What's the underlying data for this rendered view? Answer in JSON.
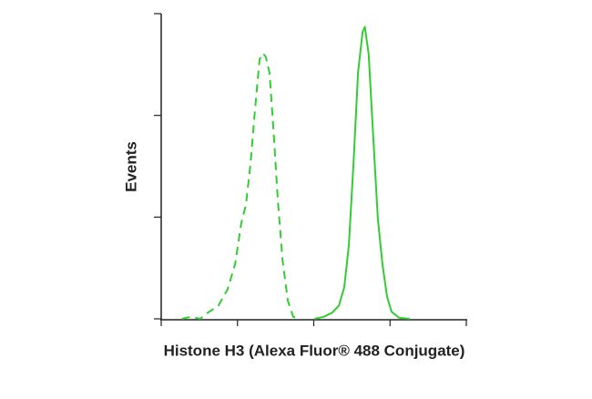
{
  "chart_data": {
    "type": "line",
    "x_label": "Histone H3 (Alexa Fluor® 488 Conjugate)",
    "y_label": "Events",
    "xlim": [
      0,
      4
    ],
    "ylim": [
      0,
      3
    ],
    "xticks": [
      0,
      1,
      2,
      3,
      4
    ],
    "yticks": [
      0,
      1,
      2,
      3
    ],
    "series": [
      {
        "color": "#33cc33",
        "dashed": true,
        "x": [
          0.27,
          0.39,
          0.51,
          0.61,
          0.75,
          0.87,
          0.97,
          1.05,
          1.11,
          1.17,
          1.23,
          1.29,
          1.33,
          1.37,
          1.42,
          1.47,
          1.53,
          1.59,
          1.66,
          1.73,
          1.82
        ],
        "values": [
          0,
          0.02,
          0,
          0.06,
          0.13,
          0.29,
          0.54,
          0.94,
          1.12,
          1.52,
          2.06,
          2.55,
          2.61,
          2.58,
          2.42,
          1.88,
          1.16,
          0.58,
          0.18,
          0.02,
          0
        ]
      },
      {
        "color": "#33cc33",
        "dashed": false,
        "x": [
          2.01,
          2.13,
          2.24,
          2.33,
          2.4,
          2.46,
          2.52,
          2.58,
          2.64,
          2.67,
          2.72,
          2.78,
          2.84,
          2.9,
          2.96,
          3.02,
          3.12,
          3.26
        ],
        "values": [
          0,
          0.02,
          0.06,
          0.13,
          0.31,
          0.72,
          1.52,
          2.42,
          2.82,
          2.87,
          2.6,
          1.79,
          0.98,
          0.54,
          0.22,
          0.07,
          0.01,
          0
        ]
      }
    ]
  }
}
